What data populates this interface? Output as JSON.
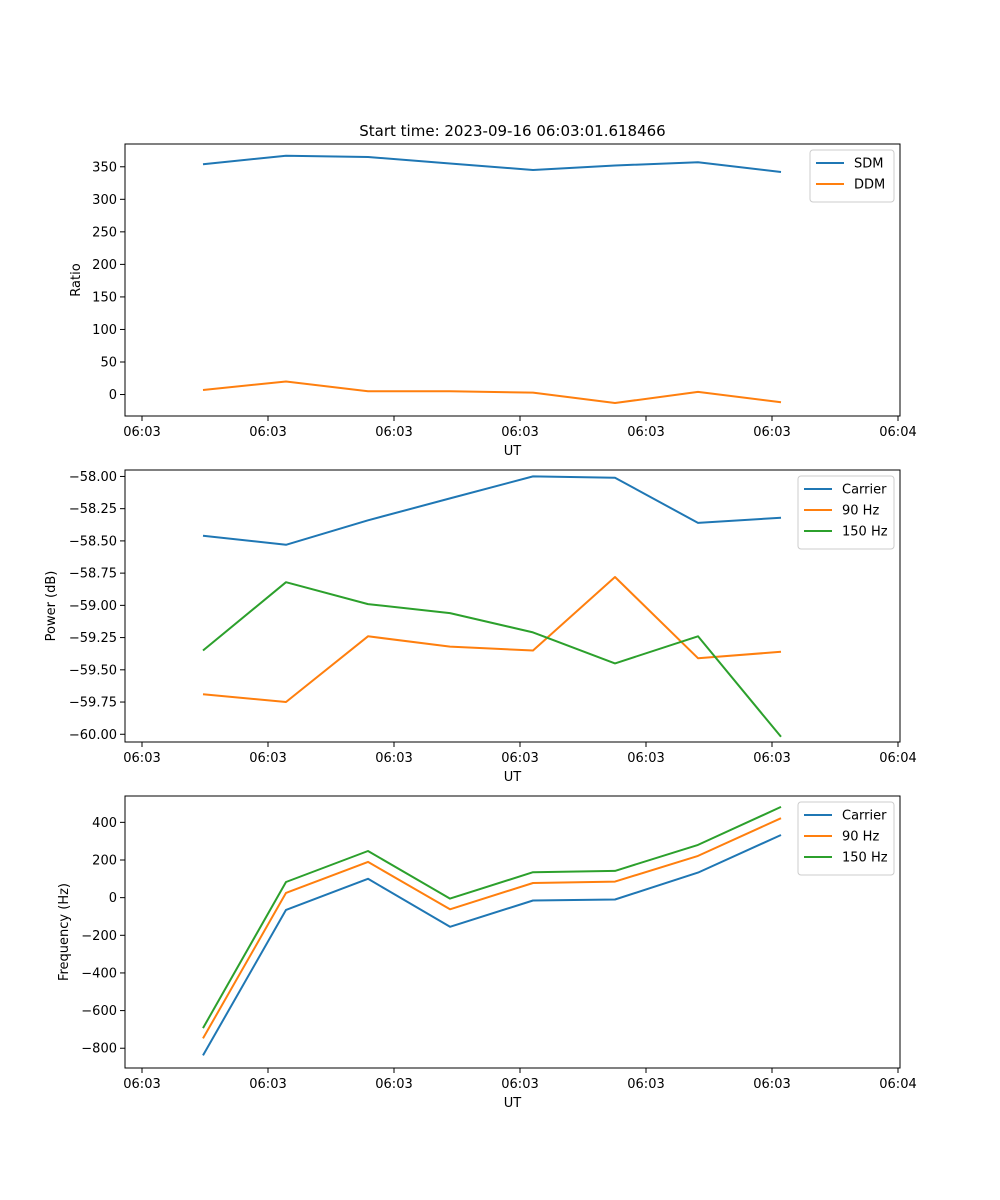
{
  "chart_data": [
    {
      "type": "line",
      "title": "Start time: 2023-09-16 06:03:01.618466",
      "xlabel": "UT",
      "ylabel": "Ratio",
      "x_tick_labels": [
        "06:03",
        "06:03",
        "06:03",
        "06:03",
        "06:03",
        "06:03",
        "06:04"
      ],
      "y_ticks": [
        0,
        50,
        100,
        150,
        200,
        250,
        300,
        350
      ],
      "ylim": [
        -33,
        385
      ],
      "legend_position": "top-right",
      "x": [
        1,
        2,
        3,
        4,
        5,
        6,
        7,
        8
      ],
      "series": [
        {
          "name": "SDM",
          "color": "#1f77b4",
          "values": [
            354,
            367,
            365,
            355,
            345,
            352,
            357,
            342
          ]
        },
        {
          "name": "DDM",
          "color": "#ff7f0e",
          "values": [
            7,
            20,
            5,
            5,
            3,
            -13,
            4,
            -12
          ]
        }
      ]
    },
    {
      "type": "line",
      "title": "",
      "xlabel": "UT",
      "ylabel": "Power (dB)",
      "x_tick_labels": [
        "06:03",
        "06:03",
        "06:03",
        "06:03",
        "06:03",
        "06:03",
        "06:04"
      ],
      "y_ticks": [
        -60.0,
        -59.75,
        -59.5,
        -59.25,
        -59.0,
        -58.75,
        -58.5,
        -58.25,
        -58.0
      ],
      "y_tick_labels": [
        "−60.00",
        "−59.75",
        "−59.50",
        "−59.25",
        "−59.00",
        "−58.75",
        "−58.50",
        "−58.25",
        "−58.00"
      ],
      "ylim": [
        -60.06,
        -57.95
      ],
      "legend_position": "top-right",
      "x": [
        1,
        2,
        3,
        4,
        5,
        6,
        7,
        8
      ],
      "series": [
        {
          "name": "Carrier",
          "color": "#1f77b4",
          "values": [
            -58.46,
            -58.53,
            -58.34,
            -58.17,
            -58.0,
            -58.01,
            -58.36,
            -58.32
          ]
        },
        {
          "name": "90 Hz",
          "color": "#ff7f0e",
          "values": [
            -59.69,
            -59.75,
            -59.24,
            -59.32,
            -59.35,
            -58.78,
            -59.41,
            -59.36
          ]
        },
        {
          "name": "150 Hz",
          "color": "#2ca02c",
          "values": [
            -59.35,
            -58.82,
            -58.99,
            -59.06,
            -59.21,
            -59.45,
            -59.24,
            -60.02
          ]
        }
      ]
    },
    {
      "type": "line",
      "title": "",
      "xlabel": "UT",
      "ylabel": "Frequency (Hz)",
      "x_tick_labels": [
        "06:03",
        "06:03",
        "06:03",
        "06:03",
        "06:03",
        "06:03",
        "06:04"
      ],
      "y_ticks": [
        -800,
        -600,
        -400,
        -200,
        0,
        200,
        400
      ],
      "y_tick_labels": [
        "−800",
        "−600",
        "−400",
        "−200",
        "0",
        "200",
        "400"
      ],
      "ylim": [
        -905,
        540
      ],
      "legend_position": "top-right",
      "x": [
        1,
        2,
        3,
        4,
        5,
        6,
        7,
        8
      ],
      "series": [
        {
          "name": "Carrier",
          "color": "#1f77b4",
          "values": [
            -838,
            -65,
            100,
            -155,
            -15,
            -10,
            133,
            333
          ]
        },
        {
          "name": "90 Hz",
          "color": "#ff7f0e",
          "values": [
            -748,
            25,
            190,
            -62,
            78,
            85,
            222,
            422
          ]
        },
        {
          "name": "150 Hz",
          "color": "#2ca02c",
          "values": [
            -693,
            83,
            248,
            -5,
            135,
            142,
            280,
            482
          ]
        }
      ]
    }
  ]
}
